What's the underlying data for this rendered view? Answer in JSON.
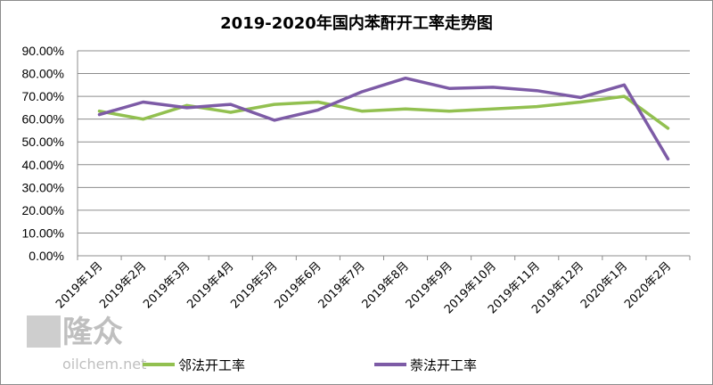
{
  "chart_data": {
    "type": "line",
    "title": "2019-2020年国内苯酐开工率走势图",
    "categories": [
      "2019年1月",
      "2019年2月",
      "2019年3月",
      "2019年4月",
      "2019年5月",
      "2019年6月",
      "2019年7月",
      "2019年8月",
      "2019年9月",
      "2019年10月",
      "2019年11月",
      "2019年12月",
      "2020年1月",
      "2020年2月"
    ],
    "y_ticks": [
      "0.00%",
      "10.00%",
      "20.00%",
      "30.00%",
      "40.00%",
      "50.00%",
      "60.00%",
      "70.00%",
      "80.00%",
      "90.00%"
    ],
    "ylim": [
      0,
      90
    ],
    "grid": true,
    "legend_position": "bottom",
    "series": [
      {
        "name": "邻法开工率",
        "color": "#92c050",
        "values": [
          63.5,
          60.0,
          66.0,
          63.0,
          66.5,
          67.5,
          63.5,
          64.5,
          63.5,
          64.5,
          65.5,
          67.5,
          70.0,
          56.0
        ]
      },
      {
        "name": "萘法开工率",
        "color": "#7d5ba6",
        "values": [
          62.0,
          67.5,
          65.0,
          66.5,
          59.5,
          64.0,
          72.0,
          78.0,
          73.5,
          74.0,
          72.5,
          69.5,
          75.0,
          42.5
        ]
      }
    ]
  },
  "watermark": {
    "brand": "隆众",
    "site": "oilchem.net"
  }
}
